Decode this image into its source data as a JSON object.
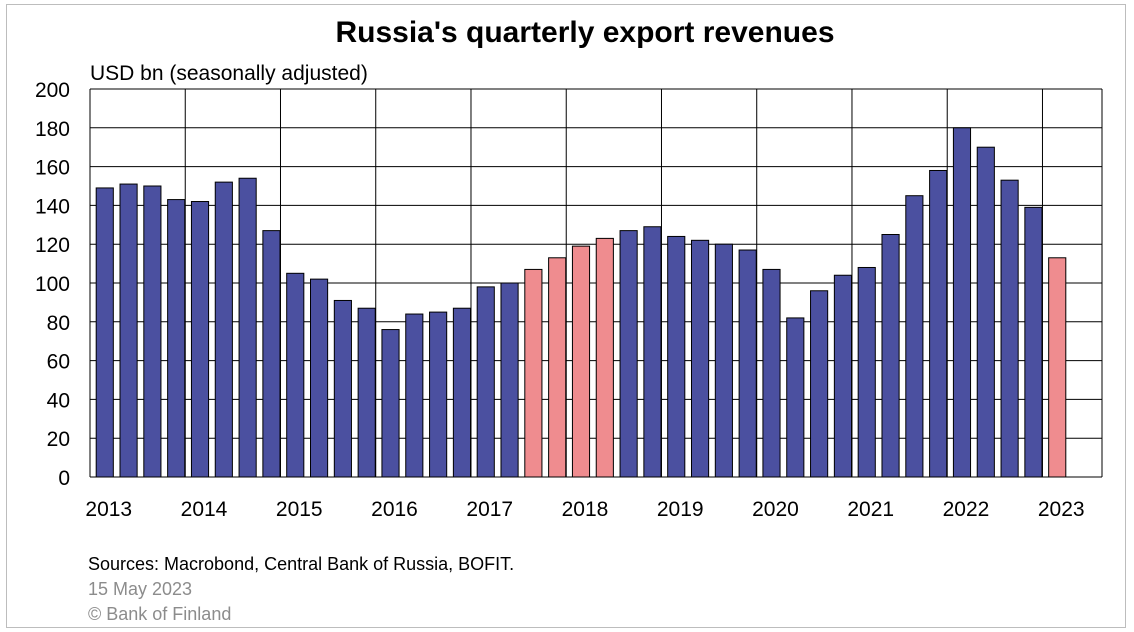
{
  "colors": {
    "actual": "#4b50a0",
    "highlight": "#ef8c8f",
    "grid": "#000000",
    "meta_text": "#8c8c8c"
  },
  "footer": {
    "sources": "Sources: Macrobond, Central Bank of Russia, BOFIT.",
    "date": "15 May 2023",
    "copyright": "© Bank of Finland"
  },
  "chart_data": {
    "type": "bar",
    "title": "Russia's quarterly export revenues",
    "ylabel": "USD bn (seasonally adjusted)",
    "xlabel": "",
    "ylim": [
      0,
      200
    ],
    "y_ticks": [
      0,
      20,
      40,
      60,
      80,
      100,
      120,
      140,
      160,
      180,
      200
    ],
    "x_tick_labels": [
      "2013",
      "2014",
      "2015",
      "2016",
      "2017",
      "2018",
      "2019",
      "2020",
      "2021",
      "2022",
      "2023"
    ],
    "grid": true,
    "categories": [
      "2013 Q1",
      "2013 Q2",
      "2013 Q3",
      "2013 Q4",
      "2014 Q1",
      "2014 Q2",
      "2014 Q3",
      "2014 Q4",
      "2015 Q1",
      "2015 Q2",
      "2015 Q3",
      "2015 Q4",
      "2016 Q1",
      "2016 Q2",
      "2016 Q3",
      "2016 Q4",
      "2017 Q1",
      "2017 Q2",
      "2017 Q3",
      "2017 Q4",
      "2018 Q1",
      "2018 Q2",
      "2018 Q3",
      "2018 Q4",
      "2019 Q1",
      "2019 Q2",
      "2019 Q3",
      "2019 Q4",
      "2020 Q1",
      "2020 Q2",
      "2020 Q3",
      "2020 Q4",
      "2021 Q1",
      "2021 Q2",
      "2021 Q3",
      "2021 Q4",
      "2022 Q1",
      "2022 Q2",
      "2022 Q3",
      "2022 Q4",
      "2023 Q1"
    ],
    "values": [
      149,
      151,
      150,
      143,
      142,
      152,
      154,
      127,
      105,
      102,
      91,
      87,
      76,
      84,
      85,
      87,
      98,
      100,
      107,
      113,
      119,
      123,
      127,
      129,
      124,
      122,
      120,
      117,
      107,
      82,
      96,
      104,
      108,
      125,
      145,
      158,
      180,
      170,
      153,
      139,
      113
    ],
    "highlighted": [
      false,
      false,
      false,
      false,
      false,
      false,
      false,
      false,
      false,
      false,
      false,
      false,
      false,
      false,
      false,
      false,
      false,
      false,
      true,
      true,
      true,
      true,
      false,
      false,
      false,
      false,
      false,
      false,
      false,
      false,
      false,
      false,
      false,
      false,
      false,
      false,
      false,
      false,
      false,
      false,
      true
    ]
  }
}
